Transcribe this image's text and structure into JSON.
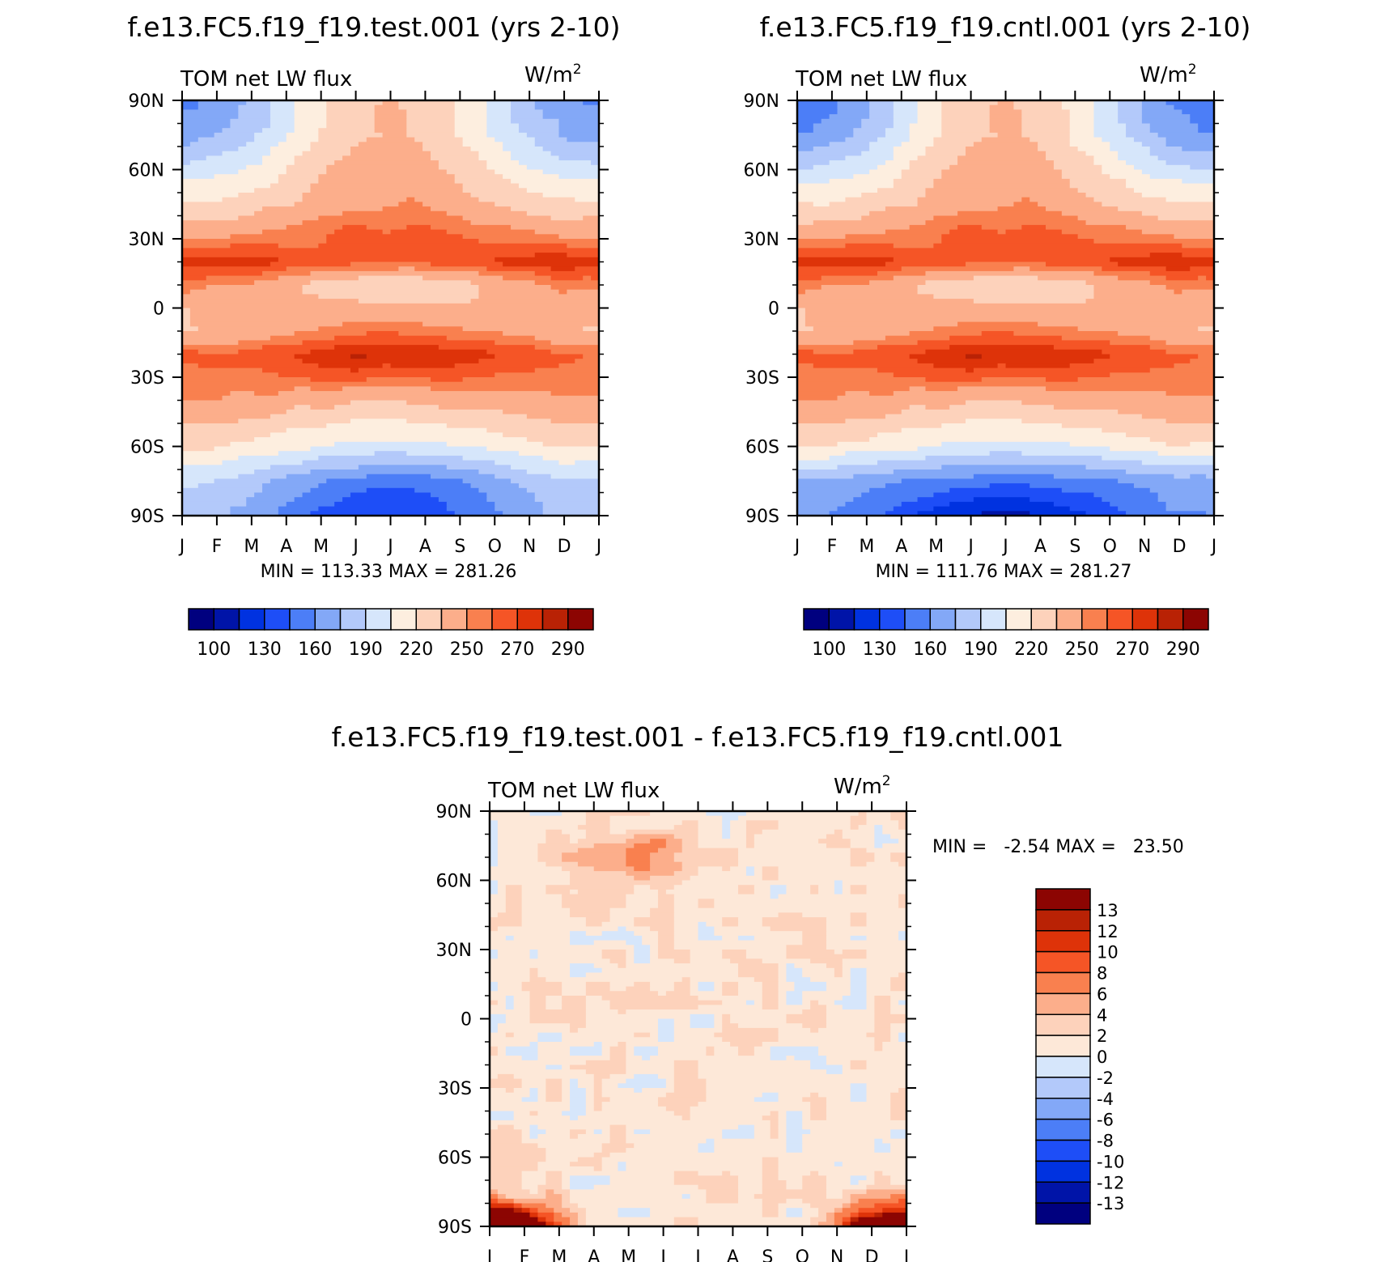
{
  "panels": [
    {
      "id": "test",
      "title": "f.e13.FC5.f19_f19.test.001 (yrs 2-10)",
      "left_label": "TOM net LW flux",
      "units": "W/m",
      "units_sup": "2",
      "stats": "MIN = 113.33 MAX = 281.26"
    },
    {
      "id": "cntl",
      "title": "f.e13.FC5.f19_f19.cntl.001 (yrs 2-10)",
      "left_label": "TOM net LW flux",
      "units": "W/m",
      "units_sup": "2",
      "stats": "MIN = 111.76 MAX = 281.27"
    },
    {
      "id": "diff",
      "title": "f.e13.FC5.f19_f19.test.001 - f.e13.FC5.f19_f19.cntl.001",
      "left_label": "TOM net LW flux",
      "units": "W/m",
      "units_sup": "2",
      "stats": "MIN =   -2.54 MAX =   23.50"
    }
  ],
  "colors": {
    "main": [
      "#00007f",
      "#0014a8",
      "#0032e0",
      "#1e4ef7",
      "#4c7ef7",
      "#83a8f7",
      "#b3c9fa",
      "#d6e6fb",
      "#fdeedf",
      "#fdd2bb",
      "#fcae8b",
      "#f9804f",
      "#f55526",
      "#de3309",
      "#b92205",
      "#8c0502"
    ],
    "diff": [
      "#00007f",
      "#0014a8",
      "#0032e0",
      "#1e4ef7",
      "#4c7ef7",
      "#83a8f7",
      "#b3c9fa",
      "#d6e6fb",
      "#fde8d8",
      "#fdd2bb",
      "#fcae8b",
      "#f9804f",
      "#f55526",
      "#de3309",
      "#b92205",
      "#8c0502"
    ]
  },
  "chart_data": [
    {
      "type": "heatmap",
      "panel": "test",
      "title": "f.e13.FC5.f19_f19.test.001 (yrs 2-10)",
      "x_ticks": [
        "J",
        "F",
        "M",
        "A",
        "M",
        "J",
        "J",
        "A",
        "S",
        "O",
        "N",
        "D",
        "J"
      ],
      "y_ticks": [
        "90N",
        "60N",
        "30N",
        "0",
        "30S",
        "60S",
        "90S"
      ],
      "y_range": [
        -90,
        90
      ],
      "levels": [
        100,
        115,
        130,
        145,
        160,
        175,
        190,
        205,
        220,
        235,
        250,
        260,
        270,
        280,
        290
      ],
      "colorbar_labels": [
        "100",
        "130",
        "160",
        "190",
        "220",
        "250",
        "270",
        "290"
      ],
      "min": 113.33,
      "max": 281.26,
      "jan_profile": [
        [
          90,
          158
        ],
        [
          75,
          170
        ],
        [
          60,
          195
        ],
        [
          45,
          222
        ],
        [
          30,
          250
        ],
        [
          20,
          278
        ],
        [
          10,
          255
        ],
        [
          0,
          238
        ],
        [
          -10,
          235
        ],
        [
          -20,
          262
        ],
        [
          -30,
          258
        ],
        [
          -45,
          245
        ],
        [
          -60,
          222
        ],
        [
          -75,
          190
        ],
        [
          -90,
          180
        ]
      ],
      "jul_profile": [
        [
          90,
          238
        ],
        [
          75,
          236
        ],
        [
          60,
          242
        ],
        [
          45,
          250
        ],
        [
          30,
          265
        ],
        [
          20,
          262
        ],
        [
          10,
          218
        ],
        [
          0,
          240
        ],
        [
          -10,
          258
        ],
        [
          -20,
          281
        ],
        [
          -30,
          262
        ],
        [
          -45,
          225
        ],
        [
          -60,
          200
        ],
        [
          -75,
          150
        ],
        [
          -90,
          130
        ]
      ]
    },
    {
      "type": "heatmap",
      "panel": "cntl",
      "title": "f.e13.FC5.f19_f19.cntl.001 (yrs 2-10)",
      "x_ticks": [
        "J",
        "F",
        "M",
        "A",
        "M",
        "J",
        "J",
        "A",
        "S",
        "O",
        "N",
        "D",
        "J"
      ],
      "y_ticks": [
        "90N",
        "60N",
        "30N",
        "0",
        "30S",
        "60S",
        "90S"
      ],
      "y_range": [
        -90,
        90
      ],
      "levels": [
        100,
        115,
        130,
        145,
        160,
        175,
        190,
        205,
        220,
        235,
        250,
        260,
        270,
        280,
        290
      ],
      "colorbar_labels": [
        "100",
        "130",
        "160",
        "190",
        "220",
        "250",
        "270",
        "290"
      ],
      "min": 111.76,
      "max": 281.27,
      "jan_profile": [
        [
          90,
          150
        ],
        [
          75,
          162
        ],
        [
          60,
          190
        ],
        [
          45,
          220
        ],
        [
          30,
          250
        ],
        [
          20,
          278
        ],
        [
          10,
          255
        ],
        [
          0,
          238
        ],
        [
          -10,
          235
        ],
        [
          -20,
          262
        ],
        [
          -30,
          258
        ],
        [
          -45,
          245
        ],
        [
          -60,
          220
        ],
        [
          -75,
          170
        ],
        [
          -90,
          160
        ]
      ],
      "jul_profile": [
        [
          90,
          238
        ],
        [
          75,
          236
        ],
        [
          60,
          242
        ],
        [
          45,
          250
        ],
        [
          30,
          265
        ],
        [
          20,
          262
        ],
        [
          10,
          218
        ],
        [
          0,
          240
        ],
        [
          -10,
          258
        ],
        [
          -20,
          281
        ],
        [
          -30,
          262
        ],
        [
          -45,
          225
        ],
        [
          -60,
          200
        ],
        [
          -75,
          150
        ],
        [
          -90,
          112
        ]
      ]
    },
    {
      "type": "heatmap",
      "panel": "diff",
      "title": "f.e13.FC5.f19_f19.test.001 - f.e13.FC5.f19_f19.cntl.001",
      "x_ticks": [
        "J",
        "F",
        "M",
        "A",
        "M",
        "J",
        "J",
        "A",
        "S",
        "O",
        "N",
        "D",
        "J"
      ],
      "y_ticks": [
        "90N",
        "60N",
        "30N",
        "0",
        "30S",
        "60S",
        "90S"
      ],
      "y_range": [
        -90,
        90
      ],
      "levels": [
        -13,
        -12,
        -10,
        -8,
        -6,
        -4,
        -2,
        0,
        2,
        4,
        6,
        8,
        10,
        12,
        13
      ],
      "colorbar_labels": [
        "13",
        "12",
        "10",
        "8",
        "6",
        "4",
        "2",
        "0",
        "-2",
        "-4",
        "-6",
        "-8",
        "-10",
        "-12",
        "-13"
      ],
      "min": -2.54,
      "max": 23.5
    }
  ]
}
